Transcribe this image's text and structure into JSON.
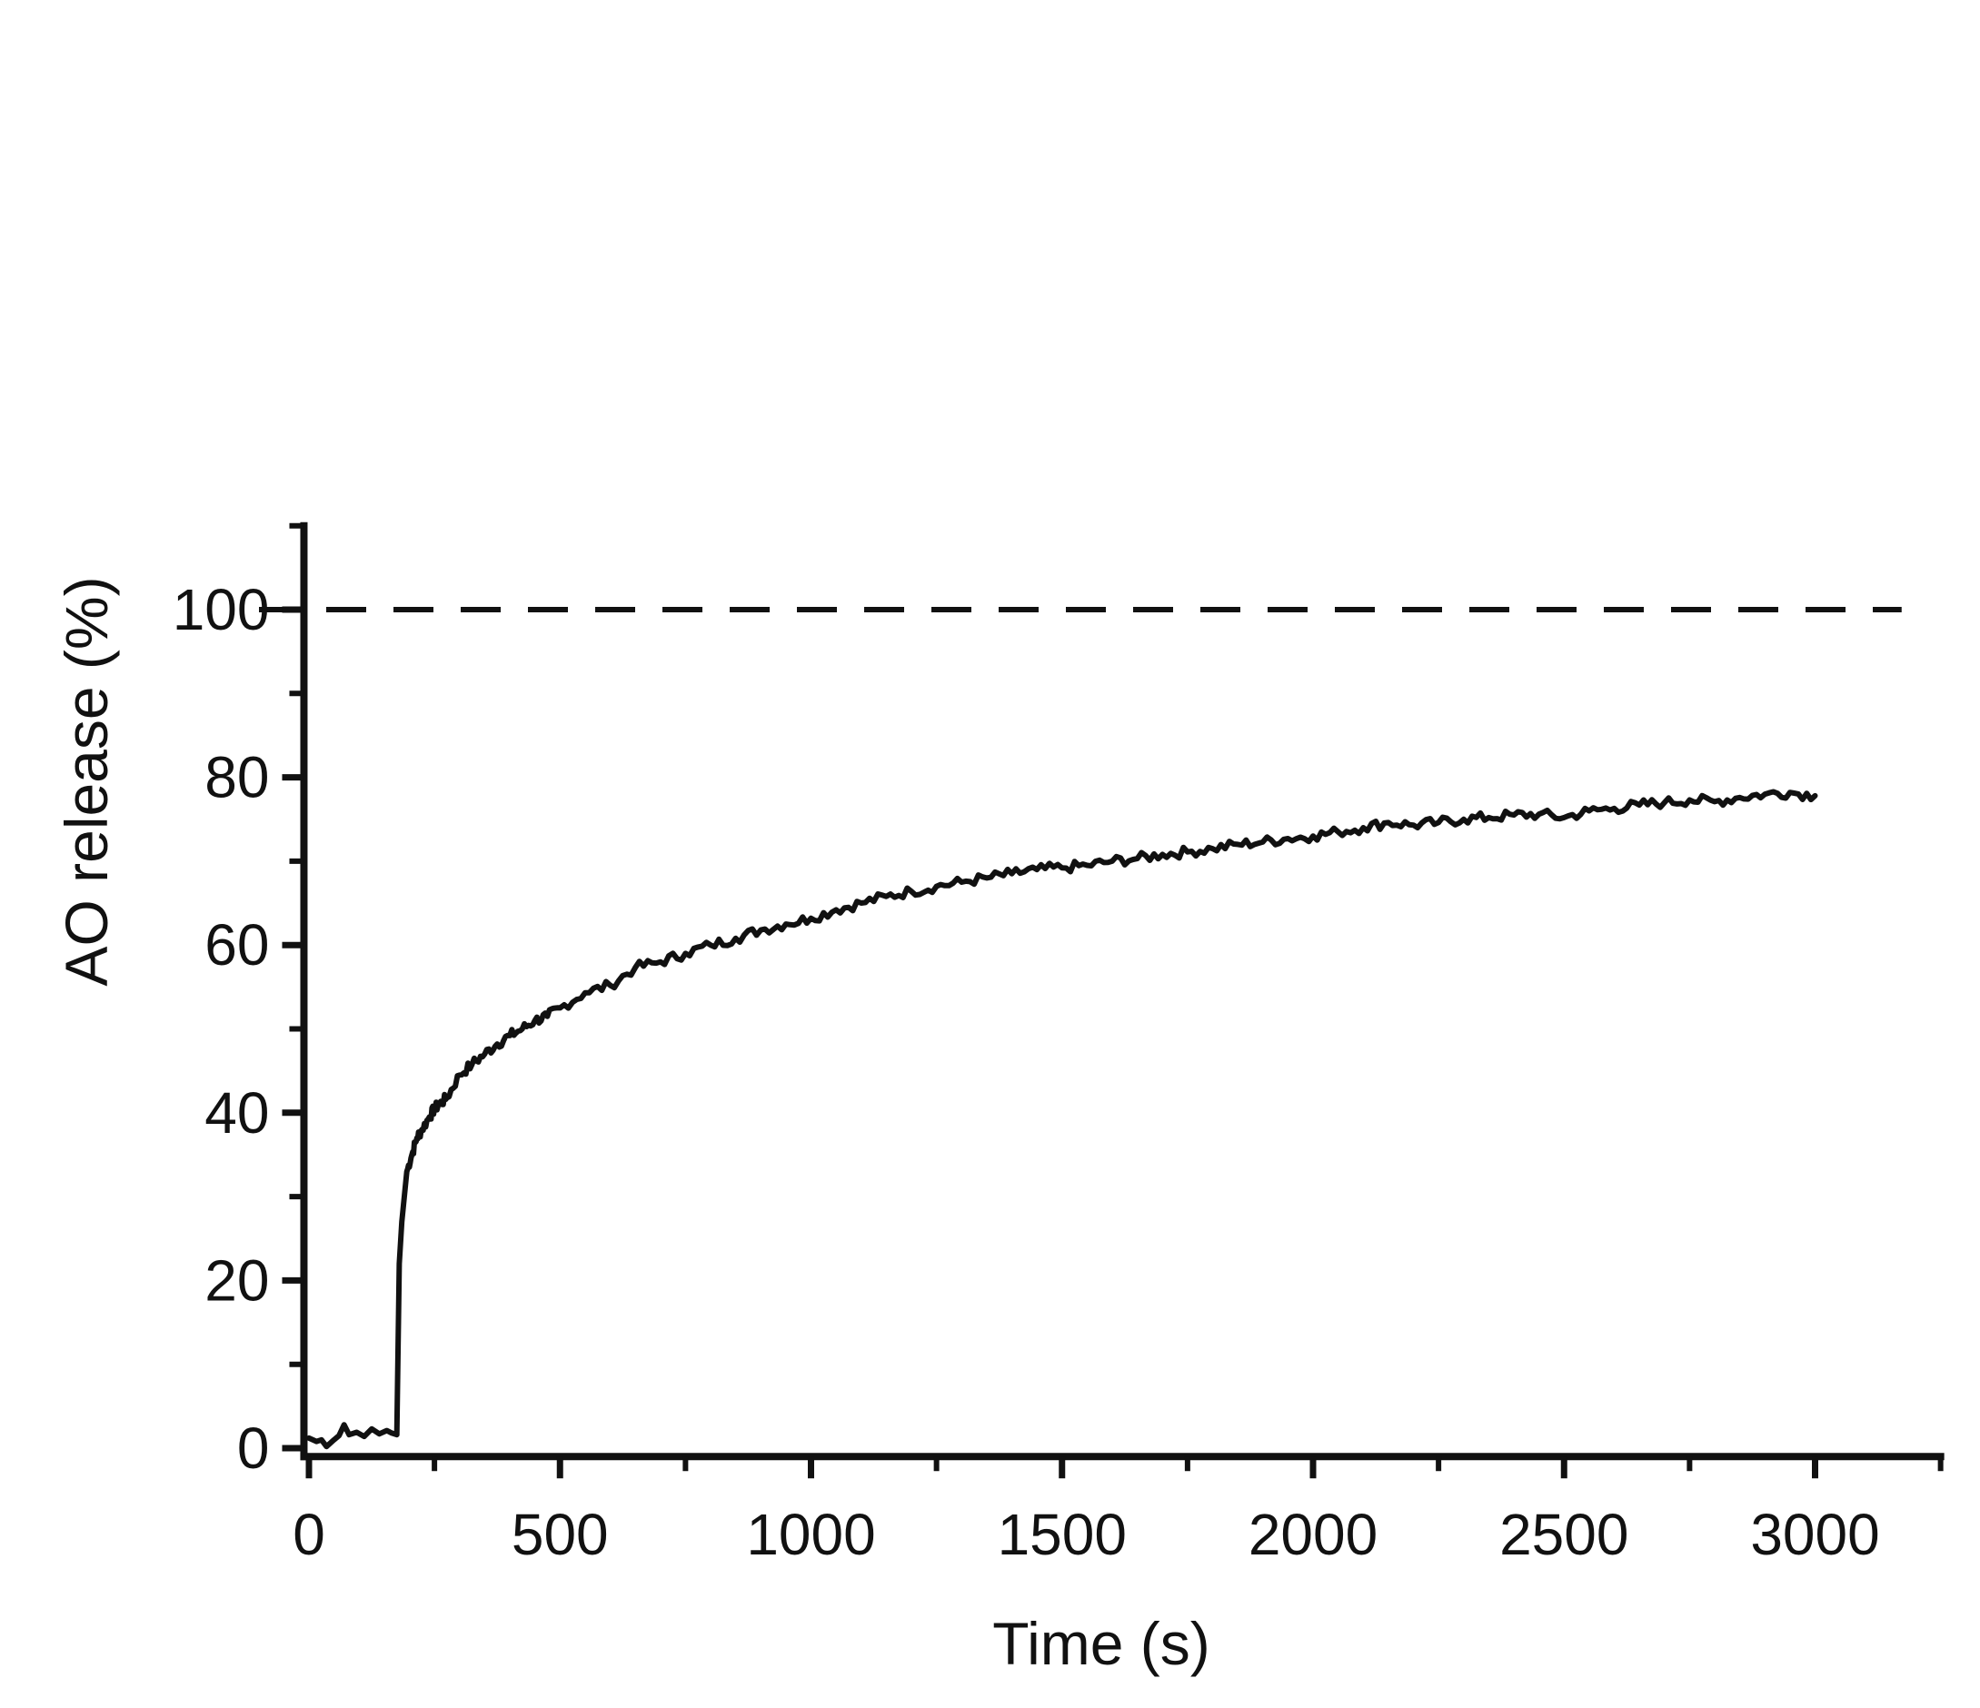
{
  "chart_data": {
    "type": "line",
    "xlabel": "Time (s)",
    "ylabel": "AO release (%)",
    "xlim": [
      -10,
      3250
    ],
    "ylim": [
      -1,
      110
    ],
    "x_ticks": [
      0,
      500,
      1000,
      1500,
      2000,
      2500,
      3000
    ],
    "x_minor_ticks": [
      250,
      750,
      1250,
      1750,
      2250,
      2750,
      3250
    ],
    "y_ticks": [
      0,
      20,
      40,
      60,
      80,
      100
    ],
    "y_minor_ticks": [
      10,
      30,
      50,
      70,
      90,
      110
    ],
    "grid": false,
    "reference_line": {
      "y": 100,
      "style": "dashed",
      "x_range": [
        0,
        3100
      ]
    },
    "series": [
      {
        "color": "#111111",
        "x": [
          0,
          15,
          25,
          35,
          50,
          60,
          70,
          80,
          95,
          110,
          125,
          140,
          155,
          165,
          175,
          180,
          185,
          195,
          205,
          215,
          225,
          240,
          250,
          260,
          275,
          300,
          325,
          350,
          375,
          400,
          425,
          450,
          475,
          500,
          550,
          600,
          650,
          700,
          750,
          800,
          850,
          900,
          950,
          1000,
          1050,
          1100,
          1150,
          1200,
          1250,
          1300,
          1350,
          1400,
          1450,
          1500,
          1550,
          1600,
          1650,
          1700,
          1750,
          1800,
          1850,
          1900,
          1950,
          2000,
          2050,
          2100,
          2150,
          2200,
          2250,
          2300,
          2350,
          2400,
          2450,
          2500,
          2550,
          2600,
          2650,
          2700,
          2750,
          2800,
          2850,
          2900,
          2950,
          3000
        ],
        "y": [
          1.2,
          0.8,
          1.0,
          0.2,
          1.0,
          1.5,
          2.8,
          1.6,
          1.9,
          1.4,
          2.3,
          1.7,
          2.1,
          1.8,
          1.6,
          22,
          27,
          33,
          35,
          37,
          38,
          39.5,
          40.5,
          41,
          41.8,
          44.5,
          45.8,
          47,
          48.2,
          49.2,
          50,
          51,
          51.5,
          52.5,
          54.3,
          55.2,
          57.3,
          58,
          59,
          60,
          60.8,
          61.8,
          62.5,
          63.2,
          64.2,
          65,
          65.8,
          66.4,
          67,
          67.5,
          68,
          68.5,
          69,
          69.2,
          69.5,
          70,
          70.3,
          70.8,
          71.1,
          71.5,
          72,
          72.3,
          72.7,
          73,
          73.5,
          74,
          74.6,
          74.3,
          74.6,
          75,
          75.2,
          75.5,
          75.6,
          75.2,
          76,
          76.3,
          76.7,
          77,
          77.3,
          77.1,
          77.6,
          78,
          78.2,
          77.8
        ]
      }
    ]
  }
}
